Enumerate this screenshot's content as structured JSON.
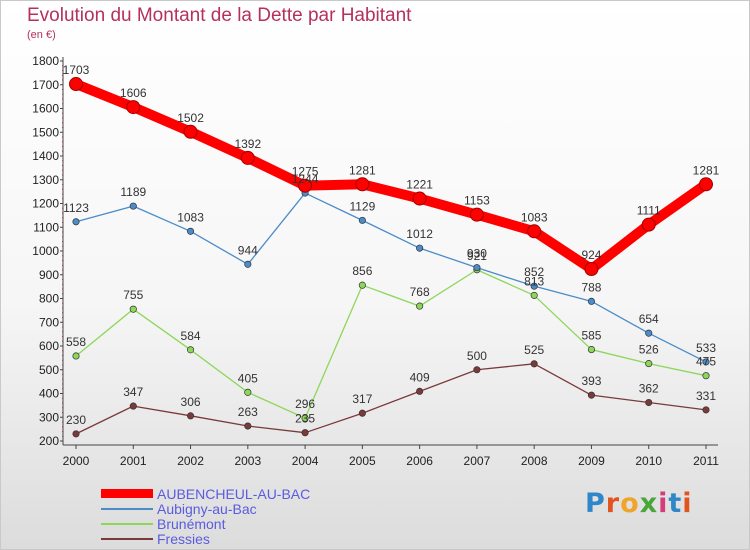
{
  "title": "Evolution du Montant de la Dette par Habitant",
  "subtitle": "(en €)",
  "brand": {
    "text": "Proxiti",
    "colors": [
      "#2f87c8",
      "#e2541f",
      "#f0a52a",
      "#4aa53a",
      "#d63c7a",
      "#2f87c8",
      "#e2541f"
    ]
  },
  "chart_data": {
    "type": "line",
    "title": "Evolution du Montant de la Dette par Habitant",
    "subtitle": "(en €)",
    "x": [
      "2000",
      "2001",
      "2002",
      "2003",
      "2004",
      "2005",
      "2006",
      "2007",
      "2008",
      "2009",
      "2010",
      "2011"
    ],
    "ylim": [
      200,
      1800
    ],
    "yticks": [
      200,
      300,
      400,
      500,
      600,
      700,
      800,
      900,
      1000,
      1100,
      1200,
      1300,
      1400,
      1500,
      1600,
      1700,
      1800
    ],
    "grid": false,
    "legend_position": "bottom-left",
    "series": [
      {
        "name": "AUBENCHEUL-AU-BAC",
        "color": "#ff0000",
        "label_color": "#5b5bdf",
        "values": [
          1703,
          1606,
          1502,
          1392,
          1275,
          1281,
          1221,
          1153,
          1083,
          924,
          1111,
          1281
        ]
      },
      {
        "name": "Aubigny-au-Bac",
        "color": "#4b8cc9",
        "label_color": "#5b5bdf",
        "values": [
          1123,
          1189,
          1083,
          944,
          1244,
          1129,
          1012,
          930,
          852,
          788,
          654,
          533
        ]
      },
      {
        "name": "Brunémont",
        "color": "#8cd75a",
        "label_color": "#5b5bdf",
        "values": [
          558,
          755,
          584,
          405,
          296,
          856,
          768,
          921,
          813,
          585,
          526,
          475
        ]
      },
      {
        "name": "Fressies",
        "color": "#7a3a3a",
        "label_color": "#5b5bdf",
        "values": [
          230,
          347,
          306,
          263,
          235,
          317,
          409,
          500,
          525,
          393,
          362,
          331
        ]
      }
    ]
  }
}
